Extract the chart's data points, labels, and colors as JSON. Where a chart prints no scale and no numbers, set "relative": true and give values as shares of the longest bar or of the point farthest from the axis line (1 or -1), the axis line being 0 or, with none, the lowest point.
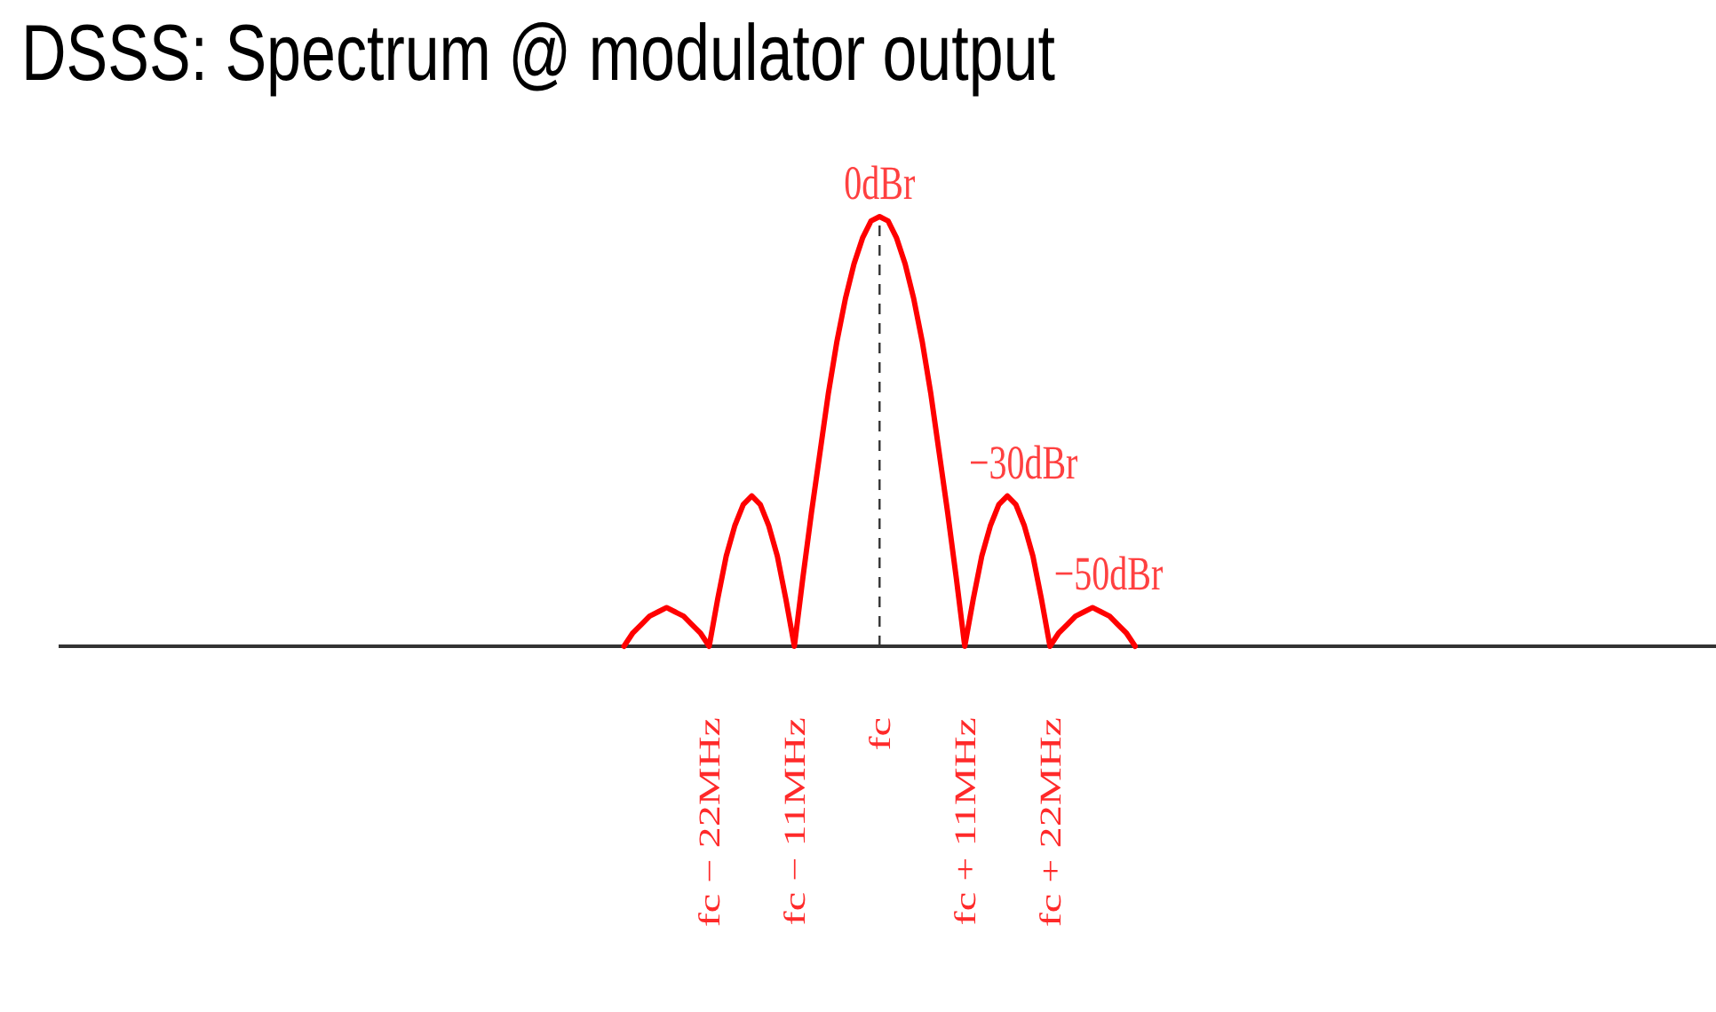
{
  "chart_data": {
    "type": "line",
    "title": "DSSS: Spectrum @ modulator output",
    "relative": true,
    "x": [
      -33,
      -31.9,
      -30.8,
      -29.7,
      -28.6,
      -27.5,
      -26.4,
      -25.3,
      -24.2,
      -23.1,
      -22,
      -20.9,
      -19.8,
      -18.7,
      -17.6,
      -16.5,
      -15.4,
      -14.3,
      -13.2,
      -12.1,
      -11,
      -9.9,
      -8.8,
      -7.7,
      -6.6,
      -5.5,
      -4.4,
      -3.3,
      -2.2,
      -1.1,
      0,
      1.1,
      2.2,
      3.3,
      4.4,
      5.5,
      6.6,
      7.7,
      8.8,
      9.9,
      11,
      12.1,
      13.2,
      14.3,
      15.4,
      16.5,
      17.6,
      18.7,
      19.8,
      20.9,
      22,
      23.1,
      24.2,
      25.3,
      26.4,
      27.5,
      28.6,
      29.7,
      30.8,
      31.9,
      33
    ],
    "xlim": [
      -106,
      108
    ],
    "xticks": [
      {
        "value": -22,
        "label": "fc − 22MHz"
      },
      {
        "value": -11,
        "label": "fc − 11MHz"
      },
      {
        "value": 0,
        "label": "fc"
      },
      {
        "value": 11,
        "label": "fc + 11MHz"
      },
      {
        "value": 22,
        "label": "fc + 22MHz"
      }
    ],
    "tick_labels": "x",
    "series": [
      {
        "color": "#ff0000",
        "values": [
          0,
          0.03,
          0.05,
          0.07,
          0.08,
          0.09,
          0.08,
          0.07,
          0.05,
          0.03,
          0,
          0.11,
          0.21,
          0.28,
          0.33,
          0.35,
          0.33,
          0.28,
          0.21,
          0.11,
          0,
          0.16,
          0.31,
          0.45,
          0.59,
          0.71,
          0.81,
          0.89,
          0.95,
          0.99,
          1,
          0.99,
          0.95,
          0.89,
          0.81,
          0.71,
          0.59,
          0.45,
          0.31,
          0.16,
          0,
          0.11,
          0.21,
          0.28,
          0.33,
          0.35,
          0.33,
          0.28,
          0.21,
          0.11,
          0,
          0.03,
          0.05,
          0.07,
          0.08,
          0.09,
          0.08,
          0.07,
          0.05,
          0.03,
          0
        ]
      }
    ],
    "ref_lines": [
      {
        "axis": "x",
        "value": 0,
        "line_style": "dashed",
        "color": "#333333"
      }
    ],
    "annotations": [
      {
        "text": "0dBr",
        "x": 0,
        "y": 1
      },
      {
        "text": "−30dBr",
        "x": 16.5,
        "y": 0.35
      },
      {
        "text": "−50dBr",
        "x": 27.5,
        "y": 0.09
      }
    ]
  }
}
